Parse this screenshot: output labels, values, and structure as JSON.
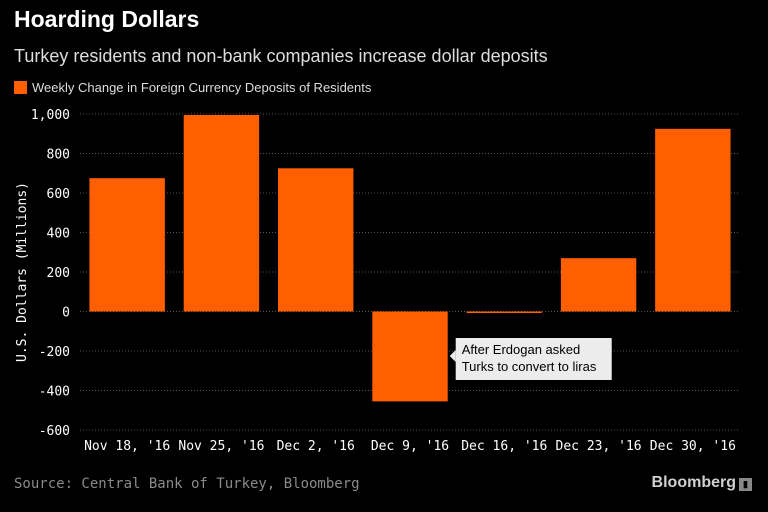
{
  "header": {
    "title": "Hoarding Dollars",
    "subtitle": "Turkey residents and non-bank companies increase dollar deposits"
  },
  "legend": {
    "label": "Weekly Change in Foreign Currency Deposits of Residents"
  },
  "footer": {
    "source": "Source: Central Bank of Turkey, Bloomberg",
    "brand": "Bloomberg",
    "brand_icon": "bloomberg-terminal-icon"
  },
  "colors": {
    "bar": "#ff5f00",
    "background": "#000000",
    "grid": "#555555",
    "text": "#ffffff"
  },
  "chart_data": {
    "type": "bar",
    "title": "Hoarding Dollars",
    "subtitle": "Turkey residents and non-bank companies increase dollar deposits",
    "xlabel": "",
    "ylabel": "U.S. Dollars (Millions)",
    "categories": [
      "Nov 18, '16",
      "Nov 25, '16",
      "Dec 2, '16",
      "Dec 9, '16",
      "Dec 16, '16",
      "Dec 23, '16",
      "Dec 30, '16"
    ],
    "series": [
      {
        "name": "Weekly Change in Foreign Currency Deposits of Residents",
        "values": [
          675,
          995,
          725,
          -455,
          -5,
          270,
          925
        ]
      }
    ],
    "ylim": [
      -600,
      1000
    ],
    "yticks": [
      -600,
      -400,
      -200,
      0,
      200,
      400,
      600,
      800,
      1000
    ],
    "ytick_labels": [
      "-600",
      "-400",
      "-200",
      "0",
      "200",
      "400",
      "600",
      "800",
      "1,000"
    ],
    "grid": true,
    "legend_position": "top-left",
    "annotations": [
      {
        "text_lines": [
          "After Erdogan asked",
          "Turks to convert to liras"
        ],
        "category": "Dec 9, '16"
      }
    ]
  }
}
